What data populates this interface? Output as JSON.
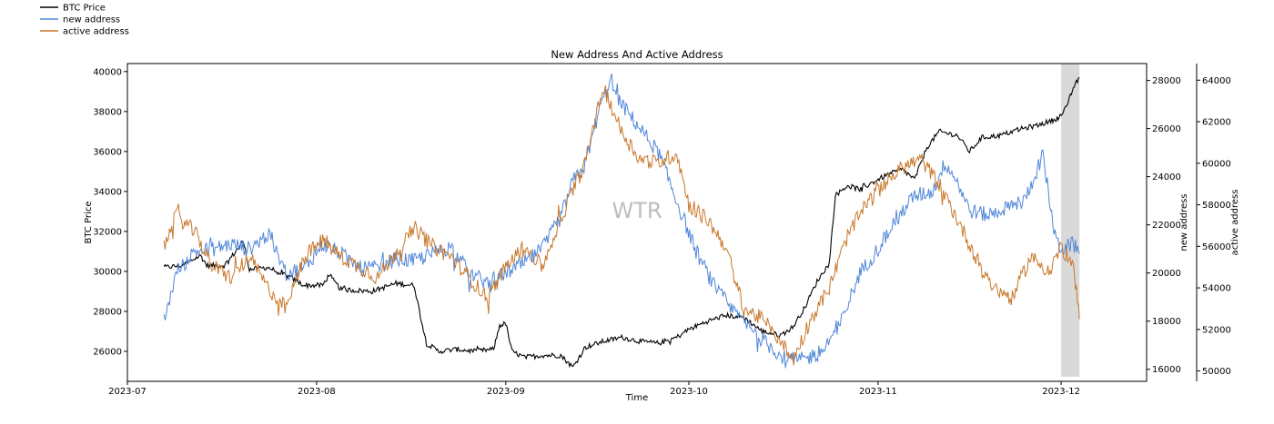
{
  "chart_data": {
    "type": "line",
    "title": "New Address And Active Address",
    "xlabel": "Time",
    "watermark": "WTR",
    "x_range": [
      "2023-07-01",
      "2023-12-15"
    ],
    "x_ticks": [
      "2023-07",
      "2023-08",
      "2023-09",
      "2023-10",
      "2023-11",
      "2023-12"
    ],
    "highlight_range": [
      "2023-12-01",
      "2023-12-04"
    ],
    "axes": {
      "left": {
        "label": "BTC Price",
        "ylim": [
          24500,
          40400
        ],
        "ticks": [
          26000,
          28000,
          30000,
          32000,
          34000,
          36000,
          38000,
          40000
        ]
      },
      "right1": {
        "label": "new address",
        "ylim": [
          15500,
          28700
        ],
        "ticks": [
          16000,
          18000,
          20000,
          22000,
          24000,
          26000,
          28000
        ]
      },
      "right2": {
        "label": "active address",
        "ylim": [
          49500,
          64800
        ],
        "ticks": [
          50000,
          52000,
          54000,
          56000,
          58000,
          60000,
          62000,
          64000
        ]
      }
    },
    "legend": {
      "position": "top-left outside"
    },
    "series": [
      {
        "name": "BTC Price",
        "axis": "left",
        "color": "#000000",
        "points": [
          [
            "2023-07-07",
            30200
          ],
          [
            "2023-07-10",
            30300
          ],
          [
            "2023-07-13",
            30800
          ],
          [
            "2023-07-14",
            30300
          ],
          [
            "2023-07-17",
            30300
          ],
          [
            "2023-07-20",
            31500
          ],
          [
            "2023-07-21",
            30100
          ],
          [
            "2023-07-24",
            30200
          ],
          [
            "2023-07-27",
            29800
          ],
          [
            "2023-07-30",
            29300
          ],
          [
            "2023-08-02",
            29300
          ],
          [
            "2023-08-03",
            29800
          ],
          [
            "2023-08-05",
            29100
          ],
          [
            "2023-08-10",
            29000
          ],
          [
            "2023-08-14",
            29400
          ],
          [
            "2023-08-17",
            29300
          ],
          [
            "2023-08-18",
            27800
          ],
          [
            "2023-08-19",
            26400
          ],
          [
            "2023-08-21",
            26000
          ],
          [
            "2023-08-24",
            26100
          ],
          [
            "2023-08-27",
            26000
          ],
          [
            "2023-08-30",
            26100
          ],
          [
            "2023-08-31",
            27300
          ],
          [
            "2023-09-01",
            27400
          ],
          [
            "2023-09-02",
            26000
          ],
          [
            "2023-09-04",
            25700
          ],
          [
            "2023-09-07",
            25800
          ],
          [
            "2023-09-10",
            25800
          ],
          [
            "2023-09-12",
            25200
          ],
          [
            "2023-09-14",
            26200
          ],
          [
            "2023-09-17",
            26500
          ],
          [
            "2023-09-20",
            26700
          ],
          [
            "2023-09-23",
            26500
          ],
          [
            "2023-09-26",
            26400
          ],
          [
            "2023-09-29",
            26700
          ],
          [
            "2023-10-01",
            27100
          ],
          [
            "2023-10-04",
            27500
          ],
          [
            "2023-10-07",
            27800
          ],
          [
            "2023-10-10",
            27700
          ],
          [
            "2023-10-13",
            27000
          ],
          [
            "2023-10-16",
            26800
          ],
          [
            "2023-10-18",
            27200
          ],
          [
            "2023-10-20",
            28200
          ],
          [
            "2023-10-22",
            29500
          ],
          [
            "2023-10-24",
            30400
          ],
          [
            "2023-10-25",
            33800
          ],
          [
            "2023-10-27",
            34300
          ],
          [
            "2023-10-29",
            34100
          ],
          [
            "2023-11-01",
            34600
          ],
          [
            "2023-11-03",
            34900
          ],
          [
            "2023-11-05",
            35100
          ],
          [
            "2023-11-07",
            34600
          ],
          [
            "2023-11-09",
            36200
          ],
          [
            "2023-11-11",
            37000
          ],
          [
            "2023-11-14",
            36800
          ],
          [
            "2023-11-16",
            36000
          ],
          [
            "2023-11-18",
            36700
          ],
          [
            "2023-11-21",
            36800
          ],
          [
            "2023-11-24",
            37100
          ],
          [
            "2023-11-27",
            37300
          ],
          [
            "2023-11-30",
            37600
          ],
          [
            "2023-12-01",
            37800
          ],
          [
            "2023-12-02",
            38300
          ],
          [
            "2023-12-03",
            39200
          ],
          [
            "2023-12-04",
            39700
          ]
        ]
      },
      {
        "name": "new address",
        "axis": "right1",
        "color": "#4f86d9",
        "points": [
          [
            "2023-07-07",
            18000
          ],
          [
            "2023-07-09",
            20000
          ],
          [
            "2023-07-12",
            20900
          ],
          [
            "2023-07-15",
            21000
          ],
          [
            "2023-07-18",
            21200
          ],
          [
            "2023-07-21",
            21000
          ],
          [
            "2023-07-24",
            21600
          ],
          [
            "2023-07-27",
            20000
          ],
          [
            "2023-07-30",
            20200
          ],
          [
            "2023-08-02",
            21200
          ],
          [
            "2023-08-05",
            20800
          ],
          [
            "2023-08-08",
            20200
          ],
          [
            "2023-08-11",
            20200
          ],
          [
            "2023-08-14",
            20600
          ],
          [
            "2023-08-17",
            20500
          ],
          [
            "2023-08-20",
            20800
          ],
          [
            "2023-08-23",
            21100
          ],
          [
            "2023-08-26",
            20000
          ],
          [
            "2023-08-29",
            19600
          ],
          [
            "2023-09-01",
            20000
          ],
          [
            "2023-09-04",
            20400
          ],
          [
            "2023-09-07",
            21000
          ],
          [
            "2023-09-10",
            22300
          ],
          [
            "2023-09-12",
            23800
          ],
          [
            "2023-09-14",
            24500
          ],
          [
            "2023-09-16",
            26500
          ],
          [
            "2023-09-18",
            28000
          ],
          [
            "2023-09-20",
            27000
          ],
          [
            "2023-09-23",
            26000
          ],
          [
            "2023-09-26",
            25000
          ],
          [
            "2023-09-29",
            23000
          ],
          [
            "2023-10-02",
            21000
          ],
          [
            "2023-10-05",
            19500
          ],
          [
            "2023-10-08",
            18500
          ],
          [
            "2023-10-11",
            17700
          ],
          [
            "2023-10-14",
            17000
          ],
          [
            "2023-10-17",
            16400
          ],
          [
            "2023-10-20",
            16400
          ],
          [
            "2023-10-23",
            16800
          ],
          [
            "2023-10-26",
            18000
          ],
          [
            "2023-10-29",
            20000
          ],
          [
            "2023-11-01",
            21000
          ],
          [
            "2023-11-04",
            22300
          ],
          [
            "2023-11-07",
            23200
          ],
          [
            "2023-11-10",
            23400
          ],
          [
            "2023-11-12",
            24600
          ],
          [
            "2023-11-14",
            23800
          ],
          [
            "2023-11-16",
            22600
          ],
          [
            "2023-11-19",
            22400
          ],
          [
            "2023-11-22",
            22700
          ],
          [
            "2023-11-25",
            23000
          ],
          [
            "2023-11-28",
            24900
          ],
          [
            "2023-11-30",
            21500
          ],
          [
            "2023-12-01",
            21000
          ],
          [
            "2023-12-03",
            21200
          ],
          [
            "2023-12-04",
            20800
          ]
        ]
      },
      {
        "name": "active address",
        "axis": "right2",
        "color": "#c8782b",
        "points": [
          [
            "2023-07-07",
            56000
          ],
          [
            "2023-07-09",
            57500
          ],
          [
            "2023-07-12",
            56700
          ],
          [
            "2023-07-15",
            55000
          ],
          [
            "2023-07-18",
            54500
          ],
          [
            "2023-07-21",
            55500
          ],
          [
            "2023-07-24",
            54000
          ],
          [
            "2023-07-27",
            53000
          ],
          [
            "2023-07-30",
            55500
          ],
          [
            "2023-08-02",
            56300
          ],
          [
            "2023-08-05",
            55500
          ],
          [
            "2023-08-08",
            55000
          ],
          [
            "2023-08-11",
            54500
          ],
          [
            "2023-08-14",
            55700
          ],
          [
            "2023-08-17",
            56900
          ],
          [
            "2023-08-20",
            56000
          ],
          [
            "2023-08-23",
            55500
          ],
          [
            "2023-08-26",
            54500
          ],
          [
            "2023-08-29",
            53500
          ],
          [
            "2023-09-01",
            55000
          ],
          [
            "2023-09-04",
            56000
          ],
          [
            "2023-09-07",
            55000
          ],
          [
            "2023-09-10",
            57300
          ],
          [
            "2023-09-12",
            58700
          ],
          [
            "2023-09-14",
            60000
          ],
          [
            "2023-09-17",
            63700
          ],
          [
            "2023-09-20",
            61500
          ],
          [
            "2023-09-23",
            60200
          ],
          [
            "2023-09-26",
            60000
          ],
          [
            "2023-09-29",
            60500
          ],
          [
            "2023-10-01",
            58000
          ],
          [
            "2023-10-04",
            57300
          ],
          [
            "2023-10-07",
            56000
          ],
          [
            "2023-10-10",
            53000
          ],
          [
            "2023-10-13",
            52500
          ],
          [
            "2023-10-16",
            51500
          ],
          [
            "2023-10-18",
            50500
          ],
          [
            "2023-10-21",
            52500
          ],
          [
            "2023-10-24",
            54000
          ],
          [
            "2023-10-27",
            56500
          ],
          [
            "2023-10-30",
            58000
          ],
          [
            "2023-11-02",
            59000
          ],
          [
            "2023-11-05",
            59800
          ],
          [
            "2023-11-08",
            60200
          ],
          [
            "2023-11-11",
            59000
          ],
          [
            "2023-11-14",
            57300
          ],
          [
            "2023-11-17",
            55500
          ],
          [
            "2023-11-20",
            54000
          ],
          [
            "2023-11-23",
            53500
          ],
          [
            "2023-11-26",
            55500
          ],
          [
            "2023-11-29",
            54800
          ],
          [
            "2023-12-01",
            56000
          ],
          [
            "2023-12-03",
            55000
          ],
          [
            "2023-12-04",
            52500
          ]
        ]
      }
    ]
  }
}
